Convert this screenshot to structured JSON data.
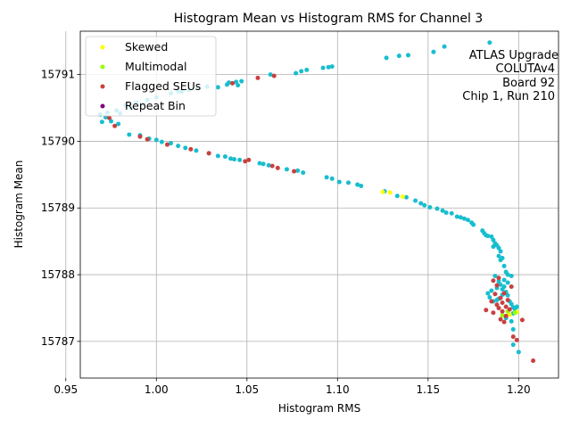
{
  "chart_data": {
    "type": "scatter",
    "title": "Histogram Mean vs Histogram RMS for Channel 3",
    "xlabel": "Histogram RMS",
    "ylabel": "Histogram Mean",
    "xlim": [
      0.958,
      1.222
    ],
    "ylim": [
      15786.45,
      15791.65
    ],
    "xticks": [
      "0.95",
      "1.00",
      "1.05",
      "1.10",
      "1.15",
      "1.20"
    ],
    "xtick_values": [
      0.95,
      1.0,
      1.05,
      1.1,
      1.15,
      1.2
    ],
    "yticks": [
      "15787",
      "15788",
      "15789",
      "15790",
      "15791"
    ],
    "ytick_values": [
      15787,
      15788,
      15789,
      15790,
      15791
    ],
    "grid": true,
    "legend_position": "top-left",
    "annotation": [
      "ATLAS Upgrade",
      "COLUTAv4",
      "Board 92",
      "Chip 1, Run 210"
    ],
    "base_color": "#17becf",
    "series": [
      {
        "name": "Skewed",
        "color": "#ffff00",
        "points": [
          [
            1.125,
            15789.24
          ],
          [
            1.129,
            15789.23
          ],
          [
            1.136,
            15789.17
          ],
          [
            1.195,
            15787.4
          ],
          [
            1.199,
            15787.44
          ]
        ]
      },
      {
        "name": "Multimodal",
        "color": "#99ff00",
        "points": [
          [
            1.191,
            15787.39
          ],
          [
            1.194,
            15787.45
          ],
          [
            1.198,
            15787.43
          ]
        ]
      },
      {
        "name": "Flagged SEUs",
        "color": "#c94040",
        "points": [
          [
            0.974,
            15790.35
          ],
          [
            0.977,
            15790.23
          ],
          [
            0.991,
            15790.07
          ],
          [
            0.995,
            15790.03
          ],
          [
            1.006,
            15789.95
          ],
          [
            1.019,
            15789.88
          ],
          [
            1.029,
            15789.82
          ],
          [
            1.049,
            15789.7
          ],
          [
            1.051,
            15789.72
          ],
          [
            1.064,
            15789.63
          ],
          [
            1.067,
            15789.6
          ],
          [
            1.076,
            15789.55
          ],
          [
            1.056,
            15790.95
          ],
          [
            1.065,
            15790.98
          ],
          [
            1.042,
            15790.87
          ],
          [
            1.182,
            15787.47
          ],
          [
            1.185,
            15787.6
          ],
          [
            1.186,
            15787.43
          ],
          [
            1.187,
            15787.71
          ],
          [
            1.188,
            15787.84
          ],
          [
            1.188,
            15787.55
          ],
          [
            1.189,
            15787.5
          ],
          [
            1.19,
            15787.65
          ],
          [
            1.19,
            15787.33
          ],
          [
            1.191,
            15787.58
          ],
          [
            1.191,
            15787.45
          ],
          [
            1.192,
            15787.29
          ],
          [
            1.193,
            15787.52
          ],
          [
            1.193,
            15787.38
          ],
          [
            1.194,
            15787.62
          ],
          [
            1.195,
            15787.48
          ],
          [
            1.196,
            15787.82
          ],
          [
            1.197,
            15787.07
          ],
          [
            1.199,
            15787.02
          ],
          [
            1.202,
            15787.32
          ],
          [
            1.208,
            15786.71
          ],
          [
            1.189,
            15787.95
          ],
          [
            1.192,
            15787.72
          ],
          [
            1.186,
            15787.91
          ]
        ]
      },
      {
        "name": "Repeat Bin",
        "color": "#800080",
        "points": []
      }
    ]
  }
}
